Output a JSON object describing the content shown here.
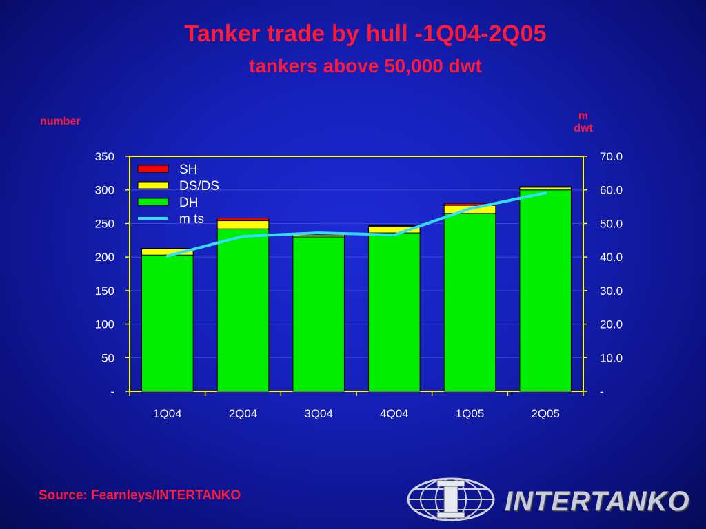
{
  "chart_data": {
    "type": "bar",
    "title": "Tanker trade by hull -1Q04-2Q05",
    "subtitle": "tankers above 50,000 dwt",
    "ylabel_left": "number",
    "ylabel_right_line1": "m",
    "ylabel_right_line2": "dwt",
    "categories": [
      "1Q04",
      "2Q04",
      "3Q04",
      "4Q04",
      "1Q05",
      "2Q05"
    ],
    "stacked": true,
    "ylim_left": [
      0,
      350
    ],
    "ylim_right": [
      0,
      70
    ],
    "left_ticks": [
      "-",
      "50",
      "100",
      "150",
      "200",
      "250",
      "300",
      "350"
    ],
    "right_ticks": [
      "-",
      "10.0",
      "20.0",
      "30.0",
      "40.0",
      "50.0",
      "60.0",
      "70.0"
    ],
    "grid": true,
    "legend_position": "top-left",
    "series": [
      {
        "name": "DH",
        "type": "bar",
        "axis": "left",
        "color": "#00ee00",
        "values": [
          203,
          242,
          230,
          236,
          265,
          300
        ]
      },
      {
        "name": "DS/DS",
        "type": "bar",
        "axis": "left",
        "color": "#ffff00",
        "values": [
          9,
          12,
          3,
          10,
          12,
          4
        ]
      },
      {
        "name": "SH",
        "type": "bar",
        "axis": "left",
        "color": "#ff0000",
        "values": [
          1,
          4,
          0,
          1,
          3,
          1
        ]
      },
      {
        "name": "m ts",
        "type": "line",
        "axis": "right",
        "color": "#33ddff",
        "values": [
          40.3,
          46.2,
          47.2,
          46.6,
          54.4,
          59.1
        ]
      }
    ]
  },
  "source": "Source: Fearnleys/INTERTANKO",
  "logo_text": "INTERTANKO",
  "logo_icon": "globe-icon"
}
